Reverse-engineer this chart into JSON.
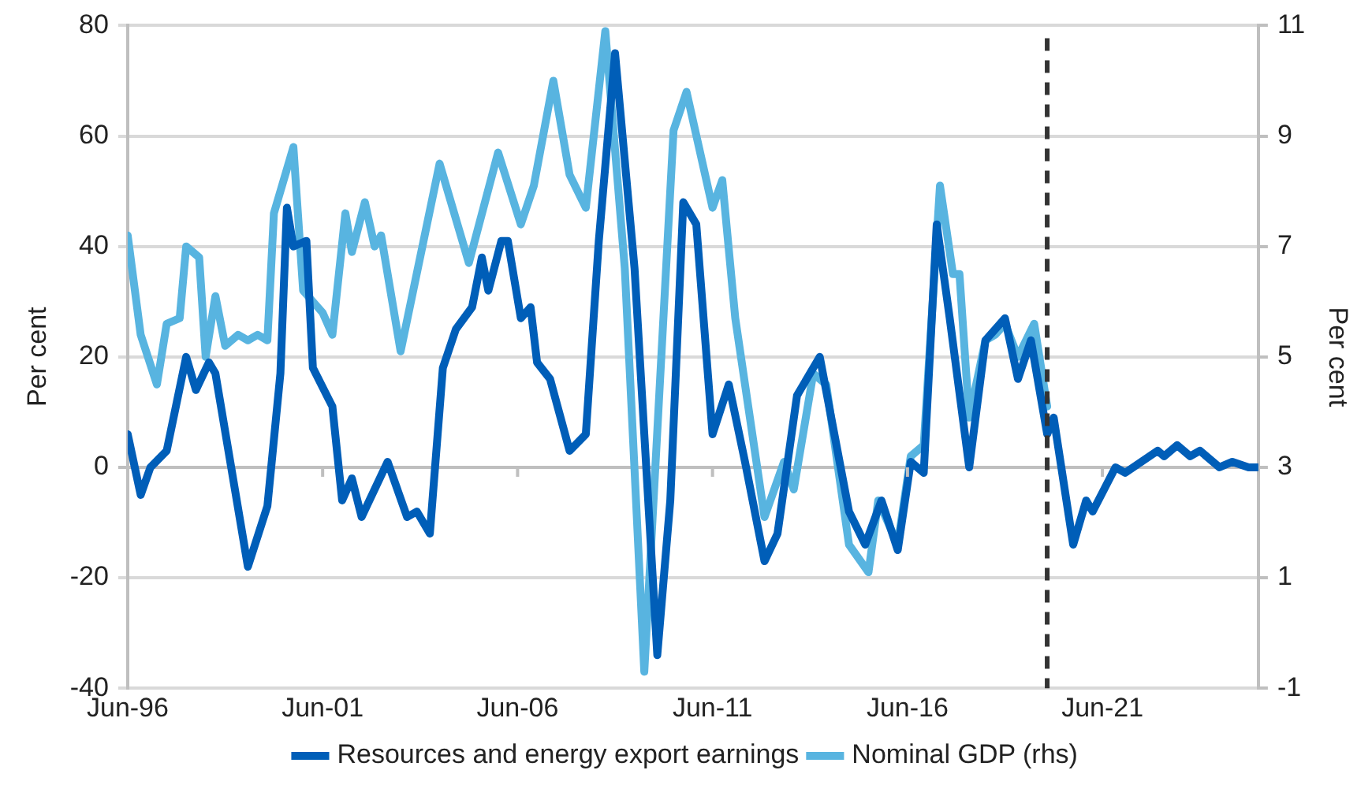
{
  "chart_data": {
    "type": "line",
    "ylabel": "Per cent",
    "y2label": "Per cent",
    "xlim": [
      "1996-06",
      "2025-06"
    ],
    "xticks": [
      {
        "value": "1996-06",
        "label": "Jun-96"
      },
      {
        "value": "2001-06",
        "label": "Jun-01"
      },
      {
        "value": "2006-06",
        "label": "Jun-06"
      },
      {
        "value": "2011-06",
        "label": "Jun-11"
      },
      {
        "value": "2016-06",
        "label": "Jun-16"
      },
      {
        "value": "2021-06",
        "label": "Jun-21"
      }
    ],
    "ylim": [
      -40,
      80
    ],
    "yticks": [
      -40,
      -20,
      0,
      20,
      40,
      60,
      80
    ],
    "y2lim": [
      -1,
      11
    ],
    "y2ticks": [
      -1,
      1,
      3,
      5,
      7,
      9,
      11
    ],
    "grid": "y",
    "legend": "bottom",
    "ref_lines": [
      {
        "axis": "x",
        "value": "2020-01",
        "color": "#333333",
        "line_style": "dashed"
      }
    ],
    "series": [
      {
        "name": "Resources and energy export earnings",
        "color": "#005eb8",
        "x": [
          "1996-06",
          "1996-10",
          "1997-01",
          "1997-06",
          "1997-12",
          "1998-03",
          "1998-07",
          "1998-09",
          "1999-07",
          "2000-01",
          "2000-05",
          "2000-07",
          "2000-09",
          "2001-01",
          "2001-03",
          "2001-09",
          "2001-12",
          "2002-03",
          "2002-06",
          "2003-02",
          "2003-08",
          "2003-11",
          "2004-03",
          "2004-07",
          "2004-11",
          "2005-04",
          "2005-07",
          "2005-09",
          "2006-01",
          "2006-03",
          "2006-07",
          "2006-10",
          "2006-12",
          "2007-04",
          "2007-10",
          "2008-03",
          "2008-07",
          "2008-12",
          "2009-06",
          "2010-01",
          "2010-05",
          "2010-09",
          "2011-01",
          "2011-06",
          "2011-11",
          "2012-04",
          "2012-10",
          "2013-02",
          "2013-08",
          "2014-03",
          "2014-12",
          "2015-05",
          "2015-10",
          "2016-03",
          "2016-07",
          "2016-11",
          "2017-03",
          "2017-07",
          "2018-01",
          "2018-06",
          "2018-12",
          "2019-04",
          "2019-08",
          "2020-01",
          "2020-03",
          "2020-09",
          "2021-01",
          "2021-03",
          "2021-10",
          "2022-01",
          "2022-06",
          "2022-11",
          "2023-01",
          "2023-05",
          "2023-09",
          "2023-12",
          "2024-06",
          "2024-10",
          "2025-03",
          "2025-06"
        ],
        "values": [
          6,
          -5,
          0,
          3,
          20,
          14,
          19,
          17,
          -18,
          -7,
          17,
          47,
          40,
          41,
          18,
          11,
          -6,
          -2,
          -9,
          1,
          -9,
          -8,
          -12,
          18,
          25,
          29,
          38,
          32,
          41,
          41,
          27,
          29,
          19,
          16,
          3,
          6,
          41,
          75,
          36,
          -34,
          -6,
          48,
          44,
          6,
          15,
          1,
          -17,
          -12,
          13,
          20,
          -8,
          -14,
          -6,
          -15,
          1,
          -1,
          44,
          27,
          0,
          23,
          27,
          16,
          23,
          6,
          9,
          -14,
          -6,
          -8,
          0,
          -1,
          1,
          3,
          2,
          4,
          2,
          3,
          0,
          1,
          0,
          0
        ]
      },
      {
        "name": "Nominal GDP (rhs)",
        "color": "#58b4e0",
        "axis": "y2",
        "x": [
          "1996-06",
          "1996-10",
          "1997-03",
          "1997-06",
          "1997-10",
          "1997-12",
          "1998-04",
          "1998-06",
          "1998-09",
          "1998-12",
          "1999-04",
          "1999-07",
          "1999-10",
          "2000-01",
          "2000-03",
          "2000-09",
          "2000-12",
          "2001-06",
          "2001-09",
          "2002-01",
          "2002-03",
          "2002-07",
          "2002-10",
          "2002-12",
          "2003-06",
          "2004-06",
          "2005-03",
          "2005-12",
          "2006-07",
          "2006-11",
          "2007-05",
          "2007-10",
          "2008-03",
          "2008-09",
          "2009-03",
          "2009-09",
          "2010-06",
          "2010-10",
          "2011-06",
          "2011-09",
          "2012-01",
          "2012-10",
          "2013-04",
          "2013-07",
          "2014-01",
          "2014-05",
          "2014-12",
          "2015-06",
          "2015-09",
          "2016-03",
          "2016-07",
          "2016-11",
          "2017-04",
          "2017-08",
          "2017-10",
          "2018-01",
          "2018-06",
          "2018-09",
          "2018-12",
          "2019-04",
          "2019-09",
          "2020-01"
        ],
        "values": [
          7.2,
          5.4,
          4.5,
          5.6,
          5.7,
          7.0,
          6.8,
          5.0,
          6.1,
          5.2,
          5.4,
          5.3,
          5.4,
          5.3,
          7.6,
          8.8,
          6.2,
          5.8,
          5.4,
          7.6,
          6.9,
          7.8,
          7.0,
          7.2,
          5.1,
          8.5,
          6.7,
          8.7,
          7.4,
          8.1,
          10.0,
          8.3,
          7.7,
          10.9,
          6.6,
          -0.7,
          9.1,
          9.8,
          7.7,
          8.2,
          5.7,
          2.1,
          3.1,
          2.6,
          4.7,
          4.5,
          1.6,
          1.1,
          2.4,
          1.6,
          3.2,
          3.4,
          8.1,
          6.5,
          6.5,
          3.9,
          5.3,
          5.4,
          5.6,
          5.0,
          5.6,
          4.1
        ]
      }
    ]
  }
}
